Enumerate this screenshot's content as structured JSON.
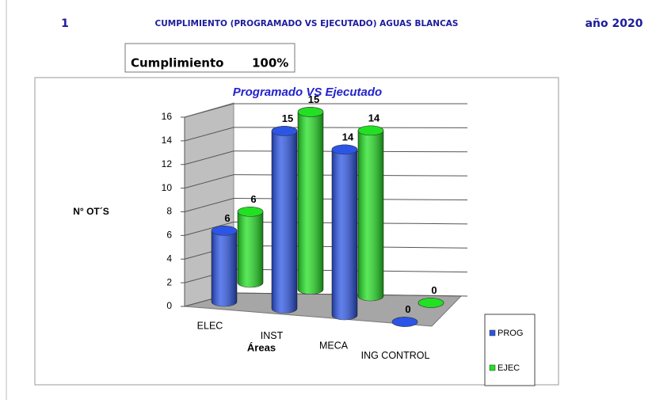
{
  "header": {
    "number": "1",
    "title": "CUMPLIMIENTO (PROGRAMADO VS EJECUTADO) AGUAS BLANCAS",
    "year": "año 2020"
  },
  "summary": {
    "label": "Cumplimiento",
    "value": "100%"
  },
  "chart_data": {
    "type": "bar3d",
    "title": "Programado VS Ejecutado",
    "y_label": "N° OT´S",
    "x_label": "Áreas",
    "categories": [
      "ELEC",
      "INST",
      "MECA",
      "ING CONTROL"
    ],
    "series": [
      {
        "name": "PROG",
        "color": "#2b55e6",
        "values": [
          6,
          15,
          14,
          0
        ]
      },
      {
        "name": "EJEC",
        "color": "#22e022",
        "values": [
          6,
          15,
          14,
          0
        ]
      }
    ],
    "ylim": [
      0,
      16
    ],
    "yticks": [
      0,
      2,
      4,
      6,
      8,
      10,
      12,
      14,
      16
    ],
    "grid": true,
    "legend": "lower right"
  }
}
